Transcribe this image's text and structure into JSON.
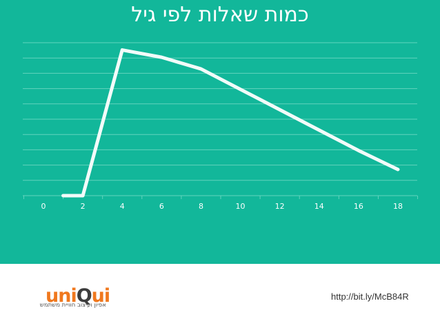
{
  "colors": {
    "background": "#12b79a",
    "line": "#f2fbf9",
    "grid": "#62d4bd",
    "tick_label": "#ffffff",
    "logo_orange": "#f0781e",
    "logo_dark": "#3d3d3d"
  },
  "chart_data": {
    "type": "line",
    "title": "כמות שאלות לפי גיל",
    "xlabel": "",
    "ylabel": "",
    "x": [
      1,
      2,
      4,
      6,
      8,
      10,
      12,
      14,
      16,
      18
    ],
    "series": [
      {
        "values": [
          0,
          0,
          10,
          9.5,
          8.7,
          7.3,
          5.9,
          4.5,
          3.1,
          1.8
        ]
      }
    ],
    "xticks": [
      0,
      2,
      4,
      6,
      8,
      10,
      12,
      14,
      16,
      18
    ],
    "xlim": [
      0,
      18
    ],
    "ylim": [
      0,
      10.5
    ],
    "gridlines": 10,
    "grid": true
  },
  "footer": {
    "logo_part1": "uni",
    "logo_part2": "Q",
    "logo_part3": "ui",
    "tagline": "אפיון ועיצוב חוויית משתמש",
    "url": "http://bit.ly/McB84R"
  }
}
